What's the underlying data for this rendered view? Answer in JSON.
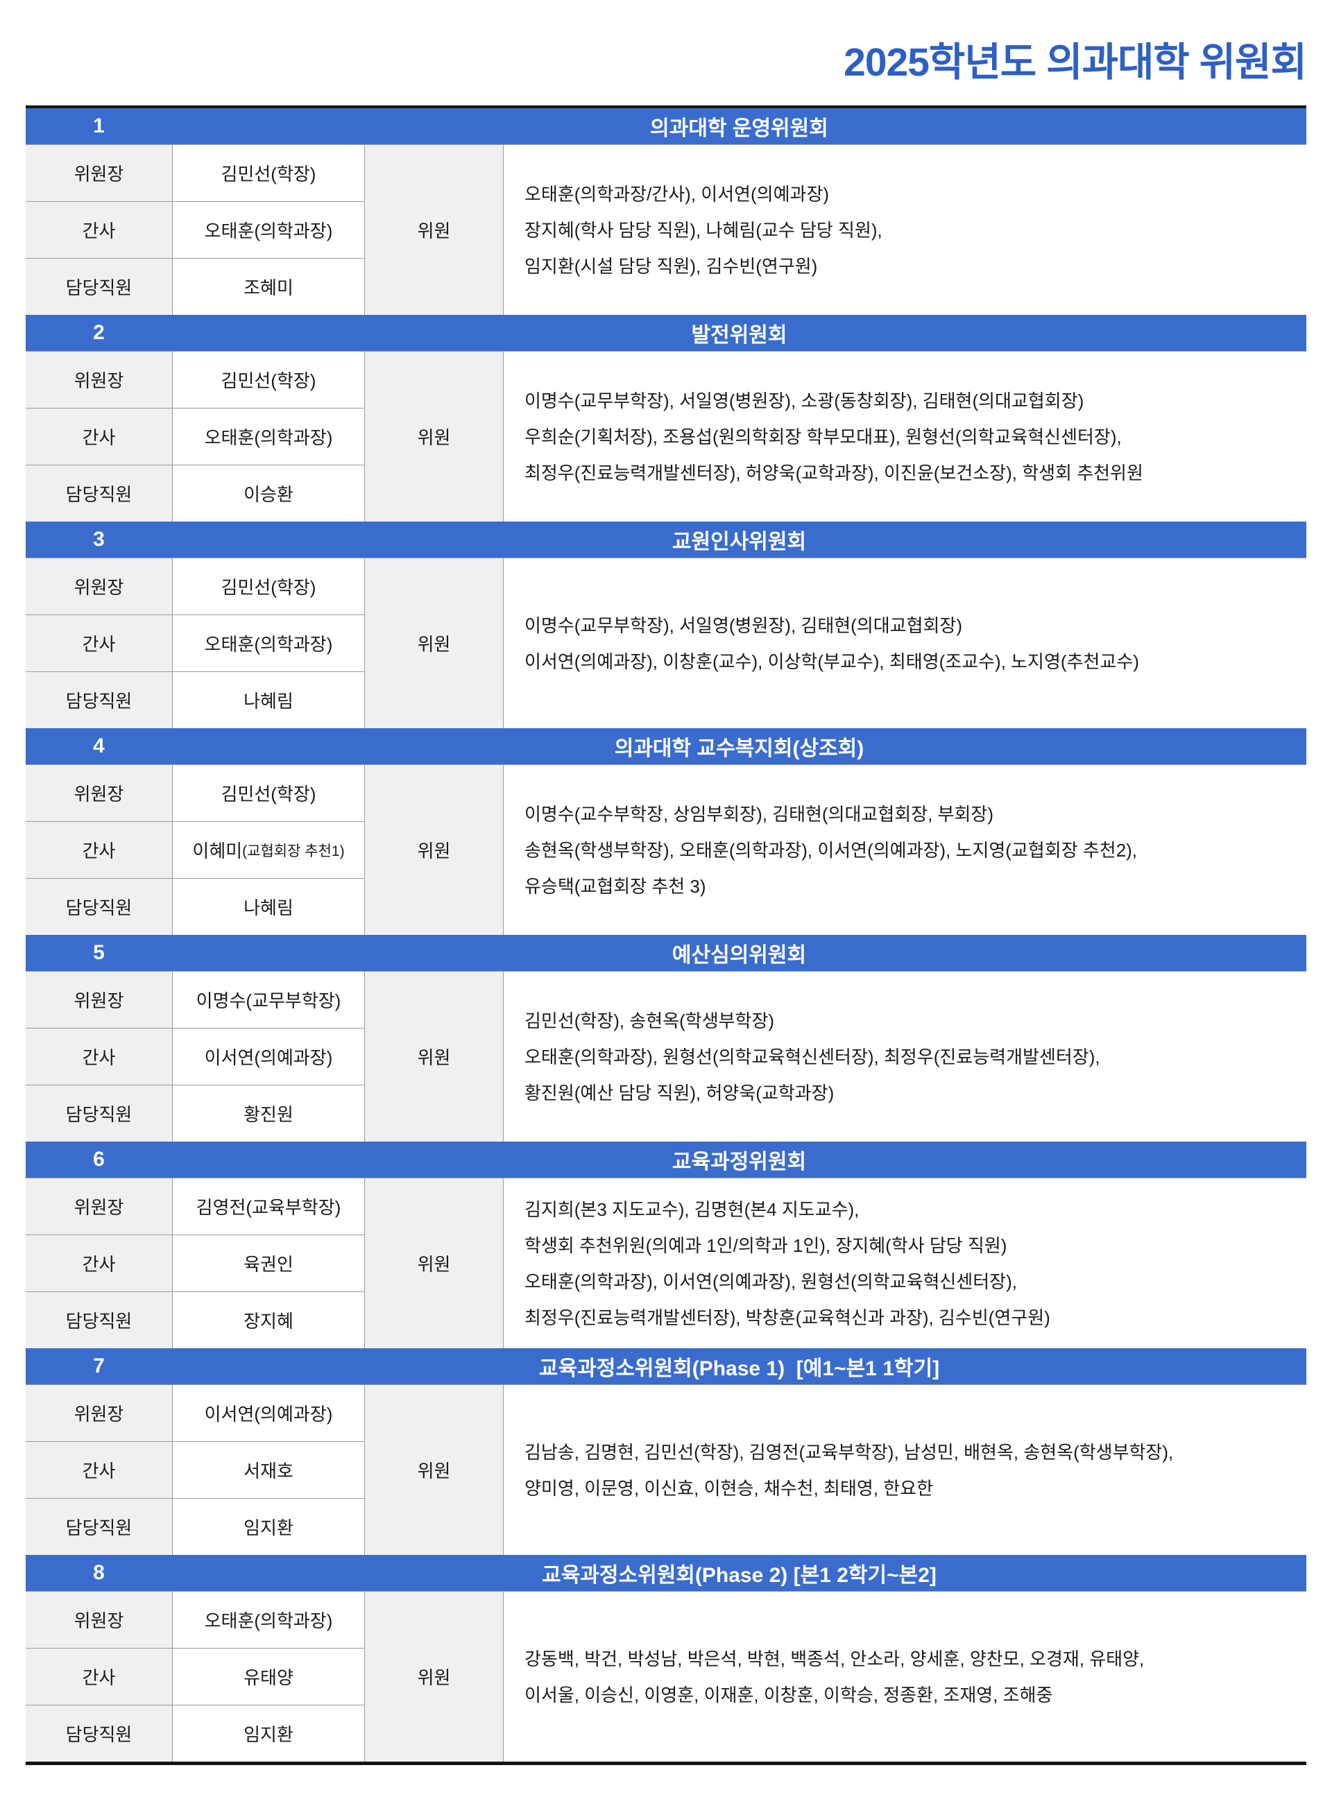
{
  "page_title": "2025학년도 의과대학 위원회",
  "title_color": "#2e5fc4",
  "header_bg_color": "#3a6cce",
  "label_bg_color": "#f0f0f0",
  "committees": [
    {
      "number": "1",
      "title": "의과대학 운영위원회",
      "rows": [
        {
          "label": "위원장",
          "value": "김민선(학장)",
          "note": ""
        },
        {
          "label": "간사",
          "value": "오태훈(의학과장)",
          "note": ""
        },
        {
          "label": "담당직원",
          "value": "조혜미",
          "note": ""
        }
      ],
      "members_label": "위원",
      "member_lines": [
        "오태훈(의학과장/간사), 이서연(의예과장)",
        "장지혜(학사 담당 직원), 나혜림(교수 담당 직원),",
        "임지환(시설 담당 직원), 김수빈(연구원)"
      ]
    },
    {
      "number": "2",
      "title": "발전위원회",
      "rows": [
        {
          "label": "위원장",
          "value": "김민선(학장)",
          "note": ""
        },
        {
          "label": "간사",
          "value": "오태훈(의학과장)",
          "note": ""
        },
        {
          "label": "담당직원",
          "value": "이승환",
          "note": ""
        }
      ],
      "members_label": "위원",
      "member_lines": [
        "이명수(교무부학장), 서일영(병원장), 소광(동창회장), 김태현(의대교협회장)",
        "우희순(기획처장), 조용섭(원의학회장 학부모대표), 원형선(의학교육혁신센터장),",
        "최정우(진료능력개발센터장), 허양욱(교학과장), 이진윤(보건소장), 학생회 추천위원"
      ]
    },
    {
      "number": "3",
      "title": "교원인사위원회",
      "rows": [
        {
          "label": "위원장",
          "value": "김민선(학장)",
          "note": ""
        },
        {
          "label": "간사",
          "value": "오태훈(의학과장)",
          "note": ""
        },
        {
          "label": "담당직원",
          "value": "나혜림",
          "note": ""
        }
      ],
      "members_label": "위원",
      "member_lines": [
        "이명수(교무부학장), 서일영(병원장), 김태현(의대교협회장)",
        "이서연(의예과장), 이창훈(교수), 이상학(부교수), 최태영(조교수), 노지영(추천교수)"
      ]
    },
    {
      "number": "4",
      "title": "의과대학 교수복지회(상조회)",
      "rows": [
        {
          "label": "위원장",
          "value": "김민선(학장)",
          "note": ""
        },
        {
          "label": "간사",
          "value": "이혜미",
          "note": "(교협회장 추천1)"
        },
        {
          "label": "담당직원",
          "value": "나혜림",
          "note": ""
        }
      ],
      "members_label": "위원",
      "member_lines": [
        "이명수(교수부학장, 상임부회장), 김태현(의대교협회장, 부회장)",
        "송현옥(학생부학장), 오태훈(의학과장), 이서연(의예과장), 노지영(교협회장 추천2),",
        "유승택(교협회장 추천 3)"
      ]
    },
    {
      "number": "5",
      "title": "예산심의위원회",
      "rows": [
        {
          "label": "위원장",
          "value": "이명수(교무부학장)",
          "note": ""
        },
        {
          "label": "간사",
          "value": "이서연(의예과장)",
          "note": ""
        },
        {
          "label": "담당직원",
          "value": "황진원",
          "note": ""
        }
      ],
      "members_label": "위원",
      "member_lines": [
        "김민선(학장), 송현옥(학생부학장)",
        "오태훈(의학과장), 원형선(의학교육혁신센터장), 최정우(진료능력개발센터장),",
        "황진원(예산 담당 직원), 허양욱(교학과장)"
      ]
    },
    {
      "number": "6",
      "title": "교육과정위원회",
      "rows": [
        {
          "label": "위원장",
          "value": "김영전(교육부학장)",
          "note": ""
        },
        {
          "label": "간사",
          "value": "육권인",
          "note": ""
        },
        {
          "label": "담당직원",
          "value": "장지혜",
          "note": ""
        }
      ],
      "members_label": "위원",
      "member_lines": [
        "김지희(본3 지도교수), 김명현(본4 지도교수),",
        "학생회 추천위원(의예과 1인/의학과 1인), 장지혜(학사 담당 직원)",
        "오태훈(의학과장), 이서연(의예과장), 원형선(의학교육혁신센터장),",
        "최정우(진료능력개발센터장), 박창훈(교육혁신과 과장), 김수빈(연구원)"
      ]
    },
    {
      "number": "7",
      "title": "교육과정소위원회(Phase 1)  [예1~본1 1학기]",
      "rows": [
        {
          "label": "위원장",
          "value": "이서연(의예과장)",
          "note": ""
        },
        {
          "label": "간사",
          "value": "서재호",
          "note": ""
        },
        {
          "label": "담당직원",
          "value": "임지환",
          "note": ""
        }
      ],
      "members_label": "위원",
      "member_lines": [
        "김남송, 김명현, 김민선(학장), 김영전(교육부학장), 남성민, 배현옥, 송현옥(학생부학장),",
        "양미영, 이문영, 이신효, 이현승, 채수천, 최태영, 한요한"
      ]
    },
    {
      "number": "8",
      "title": "교육과정소위원회(Phase 2) [본1 2학기~본2]",
      "rows": [
        {
          "label": "위원장",
          "value": "오태훈(의학과장)",
          "note": ""
        },
        {
          "label": "간사",
          "value": "유태양",
          "note": ""
        },
        {
          "label": "담당직원",
          "value": "임지환",
          "note": ""
        }
      ],
      "members_label": "위원",
      "member_lines": [
        "강동백, 박건, 박성남, 박은석, 박현, 백종석, 안소라, 양세훈, 양찬모, 오경재, 유태양,",
        "이서울, 이승신, 이영훈, 이재훈, 이창훈, 이학승, 정종환, 조재영, 조해중"
      ]
    }
  ]
}
